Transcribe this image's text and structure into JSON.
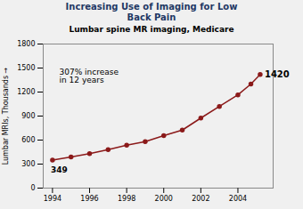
{
  "chart_data": {
    "type": "line",
    "title": "Increasing Use of Imaging for Low\nBack Pain",
    "subtitle": "Lumbar spine MR imaging, Medicare",
    "ylabel": "Lumbar MRIs, Thousands",
    "x": [
      1994,
      1995,
      1996,
      1997,
      1998,
      1999,
      2000,
      2001,
      2002,
      2003,
      2004,
      2004.7,
      2005.2
    ],
    "values": [
      349,
      390,
      430,
      480,
      535,
      580,
      655,
      725,
      875,
      1020,
      1165,
      1300,
      1420
    ],
    "color": "#8B1A1A",
    "marker": "circle",
    "xlim": [
      1993.5,
      2005.9
    ],
    "xticks": [
      1994,
      1996,
      1998,
      2000,
      2002,
      2004
    ],
    "ylim": [
      0,
      1800
    ],
    "yticks": [
      0,
      300,
      600,
      900,
      1200,
      1500,
      1800
    ],
    "grid": false,
    "annotations": [
      "349",
      "1420",
      "307% increase\nin 12 years"
    ]
  }
}
